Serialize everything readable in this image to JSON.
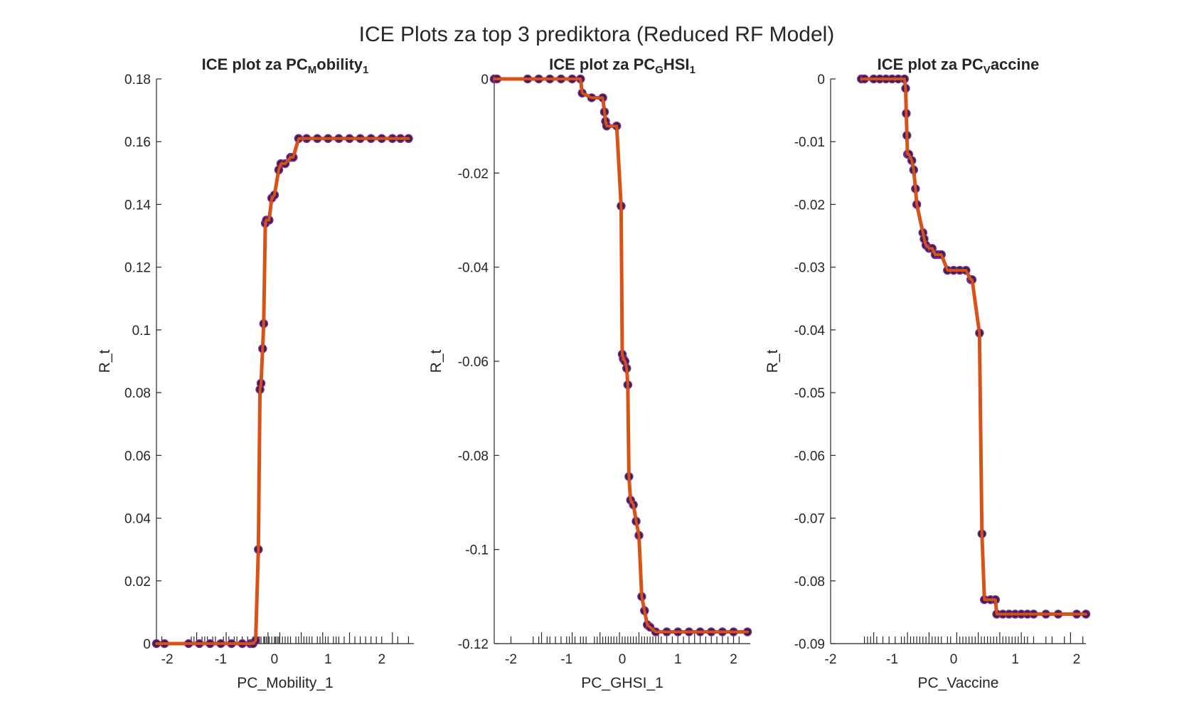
{
  "figure": {
    "title": "ICE Plots za top 3 prediktora (Reduced RF Model)",
    "colors": {
      "ice_line": "#d95319",
      "points": "#3b1d4d",
      "points_edge": "#7e2f8e",
      "rug": "#262626",
      "axis": "#262626"
    }
  },
  "chart_data": [
    {
      "type": "line",
      "title_prefix": "ICE  plot  za  PC",
      "title_sub": "M",
      "title_suffix": "obility",
      "title_sub2": "1",
      "xlabel": "PC_Mobility_1",
      "ylabel": "R_t",
      "xlim": [
        -2.2,
        2.6
      ],
      "ylim": [
        0,
        0.18
      ],
      "xticks": [
        -2,
        -1,
        0,
        1,
        2
      ],
      "yticks": [
        0,
        0.02,
        0.04,
        0.06,
        0.08,
        0.1,
        0.12,
        0.14,
        0.16,
        0.18
      ],
      "ytick_labels": [
        "0",
        "0.02",
        "0.04",
        "0.06",
        "0.08",
        "0.1",
        "0.12",
        "0.14",
        "0.16",
        "0.18"
      ],
      "series": [
        {
          "x": [
            -2.2,
            -2.05,
            -1.6,
            -1.4,
            -1.2,
            -1.0,
            -0.8,
            -0.6,
            -0.45,
            -0.4,
            -0.35,
            -0.3,
            -0.27,
            -0.25,
            -0.22,
            -0.2,
            -0.17,
            -0.15,
            -0.1,
            -0.05,
            0.0,
            0.08,
            0.12,
            0.2,
            0.3,
            0.35,
            0.45,
            0.6,
            0.8,
            1.0,
            1.2,
            1.4,
            1.6,
            1.8,
            2.0,
            2.2,
            2.35,
            2.5
          ],
          "y": [
            0.0,
            0.0,
            0.0,
            0.0,
            0.0,
            0.0,
            0.0,
            0.0,
            0.0,
            0.0,
            0.001,
            0.03,
            0.081,
            0.083,
            0.094,
            0.102,
            0.134,
            0.135,
            0.135,
            0.142,
            0.143,
            0.151,
            0.153,
            0.153,
            0.155,
            0.155,
            0.161,
            0.161,
            0.161,
            0.161,
            0.161,
            0.161,
            0.161,
            0.161,
            0.161,
            0.161,
            0.161,
            0.161
          ]
        }
      ],
      "rug": [
        -2.1,
        -1.55,
        -1.5,
        -1.45,
        -1.35,
        -1.3,
        -1.25,
        -1.15,
        -1.1,
        -0.95,
        -0.9,
        -0.85,
        -0.75,
        -0.7,
        -0.6,
        -0.5,
        -0.4,
        -0.35,
        -0.3,
        -0.28,
        -0.25,
        -0.2,
        -0.18,
        -0.15,
        -0.12,
        -0.1,
        -0.05,
        0.0,
        0.02,
        0.05,
        0.08,
        0.1,
        0.15,
        0.2,
        0.25,
        0.3,
        0.4,
        0.45,
        0.5,
        0.55,
        0.6,
        0.65,
        0.7,
        0.8,
        0.85,
        0.9,
        0.95,
        1.0,
        1.1,
        1.15,
        1.2,
        1.3,
        1.4,
        1.5,
        1.6,
        1.7,
        1.8,
        1.9,
        2.0,
        2.2,
        2.3,
        2.5
      ]
    },
    {
      "type": "line",
      "title_prefix": "ICE  plot  za  PC",
      "title_sub": "G",
      "title_suffix": "HSI",
      "title_sub2": "1",
      "xlabel": "PC_GHSI_1",
      "ylabel": "R_t",
      "xlim": [
        -2.3,
        2.3
      ],
      "ylim": [
        -0.12,
        0
      ],
      "xticks": [
        -2,
        -1,
        0,
        1,
        2
      ],
      "yticks": [
        -0.12,
        -0.1,
        -0.08,
        -0.06,
        -0.04,
        -0.02,
        0
      ],
      "ytick_labels": [
        "-0.12",
        "-0.1",
        "-0.08",
        "-0.06",
        "-0.04",
        "-0.02",
        "0"
      ],
      "series": [
        {
          "x": [
            -2.3,
            -2.25,
            -1.7,
            -1.5,
            -1.3,
            -1.1,
            -0.9,
            -0.75,
            -0.72,
            -0.55,
            -0.35,
            -0.32,
            -0.3,
            -0.28,
            -0.1,
            -0.02,
            0.0,
            0.02,
            0.05,
            0.08,
            0.1,
            0.12,
            0.15,
            0.2,
            0.25,
            0.3,
            0.35,
            0.4,
            0.45,
            0.5,
            0.6,
            0.8,
            1.0,
            1.2,
            1.4,
            1.6,
            1.8,
            2.0,
            2.25
          ],
          "y": [
            0.0,
            0.0,
            0.0,
            0.0,
            0.0,
            0.0,
            0.0,
            0.0,
            -0.003,
            -0.004,
            -0.004,
            -0.007,
            -0.009,
            -0.01,
            -0.01,
            -0.027,
            -0.0585,
            -0.0595,
            -0.06,
            -0.0615,
            -0.065,
            -0.0845,
            -0.0895,
            -0.0905,
            -0.094,
            -0.097,
            -0.11,
            -0.113,
            -0.116,
            -0.1165,
            -0.1175,
            -0.1175,
            -0.1175,
            -0.1175,
            -0.1175,
            -0.1175,
            -0.1175,
            -0.1175,
            -0.1175
          ]
        }
      ],
      "rug": [
        -2.0,
        -1.6,
        -1.5,
        -1.45,
        -1.35,
        -1.3,
        -1.2,
        -1.1,
        -1.0,
        -0.95,
        -0.9,
        -0.85,
        -0.75,
        -0.7,
        -0.65,
        -0.5,
        -0.45,
        -0.4,
        -0.35,
        -0.3,
        -0.25,
        -0.2,
        -0.15,
        -0.1,
        -0.05,
        0.0,
        0.05,
        0.1,
        0.15,
        0.2,
        0.25,
        0.3,
        0.35,
        0.4,
        0.45,
        0.5,
        0.55,
        0.6,
        0.65,
        0.7,
        0.8,
        0.9,
        1.0,
        1.1,
        1.2,
        1.3,
        1.4,
        1.5,
        1.6,
        1.7,
        1.8,
        1.9,
        2.0,
        2.1
      ]
    },
    {
      "type": "line",
      "title_prefix": "ICE  plot  za  PC",
      "title_sub": "V",
      "title_suffix": "accine",
      "title_sub2": "",
      "xlabel": "PC_Vaccine",
      "ylabel": "R_t",
      "xlim": [
        -2,
        2.15
      ],
      "ylim": [
        -0.09,
        0
      ],
      "xticks": [
        -2,
        -1,
        0,
        1,
        2
      ],
      "yticks": [
        -0.09,
        -0.08,
        -0.07,
        -0.06,
        -0.05,
        -0.04,
        -0.03,
        -0.02,
        -0.01,
        0
      ],
      "ytick_labels": [
        "-0.09",
        "-0.08",
        "-0.07",
        "-0.06",
        "-0.05",
        "-0.04",
        "-0.03",
        "-0.02",
        "-0.01",
        "0"
      ],
      "series": [
        {
          "x": [
            -1.5,
            -1.45,
            -1.3,
            -1.2,
            -1.1,
            -1.0,
            -0.9,
            -0.8,
            -0.78,
            -0.77,
            -0.76,
            -0.75,
            -0.73,
            -0.68,
            -0.65,
            -0.62,
            -0.6,
            -0.5,
            -0.48,
            -0.45,
            -0.4,
            -0.35,
            -0.3,
            -0.25,
            -0.2,
            -0.1,
            0.0,
            0.1,
            0.2,
            0.28,
            0.3,
            0.42,
            0.46,
            0.5,
            0.6,
            0.68,
            0.7,
            0.8,
            0.9,
            1.0,
            1.1,
            1.2,
            1.3,
            1.5,
            1.7,
            2.0,
            2.15
          ],
          "y": [
            0.0,
            0.0,
            0.0,
            0.0,
            0.0,
            0.0,
            0.0,
            0.0,
            -0.0015,
            -0.0055,
            -0.009,
            -0.012,
            -0.012,
            -0.013,
            -0.0145,
            -0.0175,
            -0.02,
            -0.0245,
            -0.0255,
            -0.0265,
            -0.027,
            -0.027,
            -0.028,
            -0.028,
            -0.028,
            -0.0305,
            -0.0305,
            -0.0305,
            -0.0305,
            -0.032,
            -0.032,
            -0.0405,
            -0.0725,
            -0.083,
            -0.083,
            -0.083,
            -0.0853,
            -0.0853,
            -0.0853,
            -0.0853,
            -0.0853,
            -0.0853,
            -0.0853,
            -0.0853,
            -0.0853,
            -0.0853,
            -0.0853
          ]
        }
      ],
      "rug": [
        -1.45,
        -1.4,
        -1.35,
        -1.3,
        -1.25,
        -1.15,
        -1.05,
        -0.95,
        -0.85,
        -0.8,
        -0.75,
        -0.7,
        -0.65,
        -0.6,
        -0.55,
        -0.5,
        -0.45,
        -0.4,
        -0.35,
        -0.3,
        -0.25,
        -0.2,
        -0.1,
        -0.05,
        0.05,
        0.1,
        0.15,
        0.2,
        0.25,
        0.3,
        0.35,
        0.4,
        0.45,
        0.5,
        0.55,
        0.6,
        0.65,
        0.7,
        0.75,
        0.8,
        0.85,
        0.9,
        0.95,
        1.0,
        1.05,
        1.1,
        1.15,
        1.2,
        1.3,
        1.5,
        1.6,
        1.8,
        1.9,
        2.1
      ]
    }
  ]
}
